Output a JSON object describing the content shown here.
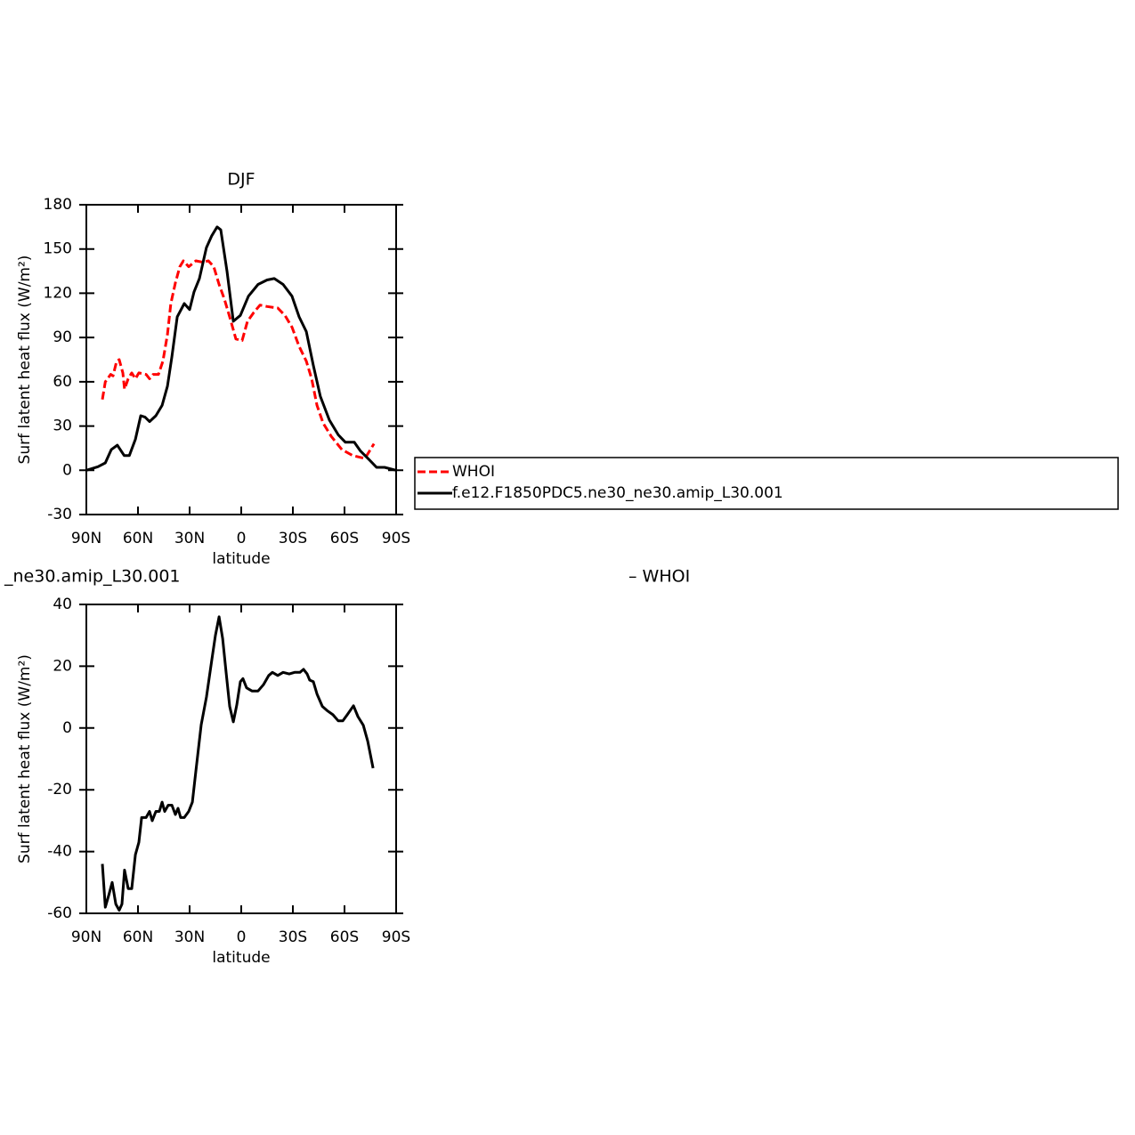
{
  "chart_data": [
    {
      "type": "line",
      "title": "DJF",
      "xlabel": "latitude",
      "ylabel": "Surf latent heat flux (W/m²)",
      "xlim": [
        90,
        -90
      ],
      "xticks": [
        {
          "value": 90,
          "label": "90N"
        },
        {
          "value": 60,
          "label": "60N"
        },
        {
          "value": 30,
          "label": "30N"
        },
        0,
        {
          "value": -30,
          "label": "30S"
        },
        {
          "value": -60,
          "label": "60S"
        },
        {
          "value": -90,
          "label": "90S"
        }
      ],
      "ylim": [
        -30,
        180
      ],
      "yticks": [
        -30,
        0,
        30,
        60,
        90,
        120,
        150,
        180
      ],
      "legend": "right",
      "series": [
        {
          "name": "WHOI",
          "color": "#ff0000",
          "line_style": "dashed",
          "x": [
            80.7,
            79,
            75.9,
            74.5,
            72.4,
            70.9,
            68.8,
            67.8,
            65.7,
            63.6,
            61.5,
            59.5,
            55.3,
            53.3,
            51.2,
            48.1,
            45.5,
            42.9,
            40.9,
            38.3,
            35.7,
            33.6,
            30.5,
            26.4,
            22.2,
            19.1,
            16,
            12.9,
            9.8,
            6.7,
            3.1,
            -0.5,
            -3.6,
            -7.3,
            -10.9,
            -15,
            -21.2,
            -25.4,
            -29.5,
            -33.6,
            -37.8,
            -40.9,
            -44,
            -47.6,
            -52.3,
            -58.5,
            -64.7,
            -71.9,
            -77.1
          ],
          "values": [
            48,
            60,
            65,
            64,
            74,
            75,
            66,
            55,
            62,
            66,
            62,
            66,
            65,
            62,
            65,
            65,
            74,
            92,
            113,
            127,
            138,
            142,
            138,
            142,
            141,
            142,
            138,
            126,
            116,
            104,
            89,
            88,
            101,
            107,
            112,
            111,
            110,
            105,
            97,
            84,
            74,
            62,
            44,
            32,
            23,
            14,
            10,
            8,
            18
          ]
        },
        {
          "name": "f.e12.F1850PDC5.ne30_ne30.amip_L30.001",
          "color": "#000000",
          "line_style": "solid",
          "x": [
            90,
            83.3,
            79,
            75.5,
            72,
            68,
            65,
            61.5,
            58.4,
            55.9,
            53.3,
            49.6,
            46,
            42.9,
            40.3,
            37.2,
            33.1,
            30,
            27.4,
            24.3,
            20.2,
            17.1,
            14,
            11.9,
            8.3,
            4.6,
            0.5,
            -4.2,
            -9.8,
            -15,
            -19.2,
            -24.3,
            -29.5,
            -33.6,
            -37.8,
            -41.9,
            -46,
            -51.2,
            -56.4,
            -60.5,
            -65.7,
            -69.3,
            -74.5,
            -78.6,
            -83.3,
            -90
          ],
          "values": [
            0,
            2.4,
            5,
            14,
            17,
            10,
            10,
            21,
            37,
            36,
            33,
            37,
            44,
            57,
            77,
            104,
            113,
            109,
            121,
            130,
            151,
            159,
            165,
            163,
            135,
            101,
            105,
            118,
            126,
            129,
            130,
            126,
            118,
            104,
            94,
            71,
            50,
            34,
            24,
            19,
            19,
            13,
            7,
            2,
            2,
            0
          ]
        }
      ]
    },
    {
      "type": "line",
      "title_left": "_ne30.amip_L30.001",
      "title_right": "– WHOI",
      "xlabel": "latitude",
      "ylabel": "Surf latent heat flux (W/m²)",
      "xlim": [
        90,
        -90
      ],
      "xticks": [
        {
          "value": 90,
          "label": "90N"
        },
        {
          "value": 60,
          "label": "60N"
        },
        {
          "value": 30,
          "label": "30N"
        },
        0,
        {
          "value": -30,
          "label": "30S"
        },
        {
          "value": -60,
          "label": "60S"
        },
        {
          "value": -90,
          "label": "90S"
        }
      ],
      "ylim": [
        -60,
        40
      ],
      "yticks": [
        -60,
        -40,
        -20,
        0,
        20,
        40
      ],
      "series": [
        {
          "color": "#000000",
          "line_style": "solid",
          "x": [
            80.7,
            79,
            76.9,
            75,
            72.9,
            70.9,
            69.3,
            67.8,
            65.7,
            63.6,
            61.5,
            59.5,
            57.9,
            55.3,
            53.3,
            51.7,
            49.6,
            47.6,
            46,
            44.5,
            42.4,
            40.3,
            38.3,
            36.7,
            35.2,
            33.1,
            30.5,
            28.4,
            26.4,
            23.3,
            20.2,
            17.1,
            15,
            12.9,
            10.8,
            8.8,
            6.7,
            4.6,
            2.6,
            0.5,
            -1,
            -3.1,
            -6.2,
            -9.8,
            -12.9,
            -16,
            -18.1,
            -21.2,
            -24.3,
            -27.9,
            -31,
            -34.1,
            -36.2,
            -38.3,
            -39.8,
            -41.9,
            -44,
            -47.1,
            -50.2,
            -53.3,
            -56.4,
            -59,
            -61.6,
            -65.2,
            -67.8,
            -70.9,
            -73.5,
            -76.6
          ],
          "values": [
            -44,
            -58,
            -54,
            -50,
            -57,
            -59,
            -57,
            -46,
            -52,
            -52,
            -41,
            -37,
            -29,
            -29,
            -27,
            -30,
            -27,
            -27,
            -24,
            -27,
            -25,
            -25,
            -28,
            -26,
            -29,
            -29,
            -27,
            -24,
            -14,
            1,
            10,
            22,
            30,
            36,
            29,
            18,
            7,
            2,
            7.5,
            15,
            16,
            13,
            12,
            12,
            14,
            17,
            18,
            17,
            18,
            17.5,
            18,
            18,
            19,
            17.5,
            15.5,
            15,
            11,
            7,
            5.5,
            4.3,
            2.3,
            2.3,
            4.3,
            7.2,
            3.7,
            0.9,
            -4.3,
            -13
          ]
        }
      ]
    }
  ]
}
